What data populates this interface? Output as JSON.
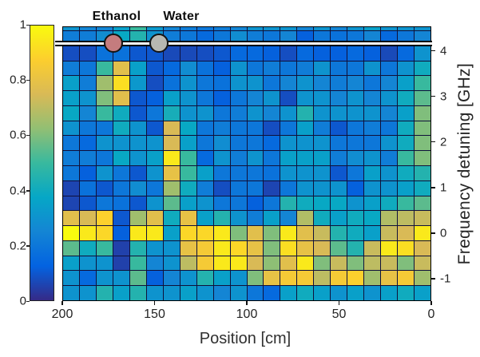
{
  "figure": {
    "annotations": {
      "ethanol_label": "Ethanol",
      "water_label": "Water",
      "ethanol_marker_color": "#c47c7e",
      "water_marker_color": "#b7b7b1",
      "marker_outline_color": "#141414",
      "scan_line_color": "#ffffff",
      "ethanol_position_cm": 172,
      "water_position_cm": 148,
      "scan_line_detuning_ghz": 4.2
    },
    "x_axis": {
      "label": "Position [cm]",
      "ticks": [
        "200",
        "150",
        "100",
        "50",
        "0"
      ]
    },
    "y_axis_right": {
      "label": "Frequency detuning [GHz]",
      "ticks": [
        "4",
        "3",
        "2",
        "1",
        "0",
        "-1"
      ]
    },
    "colorbar": {
      "ticks": [
        "1",
        "0.8",
        "0.6",
        "0.4",
        "0.2",
        "0"
      ],
      "range": [
        0,
        1
      ]
    }
  },
  "chart_data": {
    "type": "heatmap",
    "colormap": "parula",
    "parula_stops": [
      [
        0,
        "#352a87"
      ],
      [
        0.125,
        "#0363e1"
      ],
      [
        0.25,
        "#1485d4"
      ],
      [
        0.375,
        "#06a7c6"
      ],
      [
        0.5,
        "#38b99e"
      ],
      [
        0.625,
        "#92bf73"
      ],
      [
        0.75,
        "#d9ba56"
      ],
      [
        0.875,
        "#fcce2e"
      ],
      [
        1,
        "#f9fb0e"
      ]
    ],
    "grid_line_color": "#10103a",
    "n_rows": 19,
    "n_cols": 22,
    "x_range_cm": [
      200,
      0
    ],
    "y_range_ghz": [
      4.67,
      -1.33
    ],
    "note": "top row is partially clipped by the axes; values on 0-1 colorbar scale",
    "values": [
      [
        0.3,
        0.25,
        0.25,
        0.35,
        0.5,
        0.32,
        0.25,
        0.22,
        0.2,
        0.22,
        0.25,
        0.3,
        0.3,
        0.3,
        0.25,
        0.3,
        0.25,
        0.3,
        0.35,
        0.3,
        0.3,
        0.3
      ],
      [
        0.22,
        0.22,
        0.28,
        0.38,
        0.45,
        0.3,
        0.22,
        0.2,
        0.15,
        0.2,
        0.28,
        0.22,
        0.2,
        0.25,
        0.12,
        0.2,
        0.18,
        0.2,
        0.25,
        0.15,
        0.2,
        0.25
      ],
      [
        0.08,
        0.08,
        0.18,
        0.18,
        0.1,
        0.1,
        0.07,
        0.07,
        0.08,
        0.1,
        0.15,
        0.15,
        0.12,
        0.08,
        0.15,
        0.12,
        0.12,
        0.15,
        0.12,
        0.07,
        0.15,
        0.3
      ],
      [
        0.22,
        0.2,
        0.5,
        0.78,
        0.35,
        0.1,
        0.15,
        0.28,
        0.18,
        0.12,
        0.3,
        0.2,
        0.22,
        0.2,
        0.22,
        0.3,
        0.2,
        0.2,
        0.3,
        0.2,
        0.3,
        0.4
      ],
      [
        0.35,
        0.22,
        0.65,
        0.92,
        0.32,
        0.08,
        0.18,
        0.3,
        0.2,
        0.18,
        0.3,
        0.3,
        0.2,
        0.25,
        0.3,
        0.25,
        0.22,
        0.25,
        0.2,
        0.25,
        0.35,
        0.5
      ],
      [
        0.35,
        0.3,
        0.6,
        0.78,
        0.1,
        0.12,
        0.35,
        0.3,
        0.2,
        0.12,
        0.2,
        0.25,
        0.3,
        0.08,
        0.3,
        0.3,
        0.25,
        0.3,
        0.25,
        0.3,
        0.4,
        0.55
      ],
      [
        0.38,
        0.25,
        0.5,
        0.4,
        0.1,
        0.2,
        0.42,
        0.3,
        0.3,
        0.2,
        0.22,
        0.3,
        0.25,
        0.3,
        0.45,
        0.3,
        0.3,
        0.3,
        0.3,
        0.25,
        0.35,
        0.6
      ],
      [
        0.3,
        0.2,
        0.2,
        0.4,
        0.3,
        0.1,
        0.75,
        0.38,
        0.2,
        0.22,
        0.2,
        0.2,
        0.08,
        0.2,
        0.35,
        0.22,
        0.1,
        0.2,
        0.22,
        0.2,
        0.4,
        0.6
      ],
      [
        0.2,
        0.15,
        0.3,
        0.3,
        0.3,
        0.3,
        0.75,
        0.35,
        0.2,
        0.28,
        0.2,
        0.2,
        0.15,
        0.3,
        0.3,
        0.3,
        0.2,
        0.2,
        0.2,
        0.3,
        0.4,
        0.6
      ],
      [
        0.22,
        0.22,
        0.2,
        0.38,
        0.3,
        0.35,
        0.95,
        0.5,
        0.15,
        0.3,
        0.22,
        0.3,
        0.2,
        0.35,
        0.35,
        0.35,
        0.22,
        0.28,
        0.3,
        0.22,
        0.5,
        0.6
      ],
      [
        0.2,
        0.12,
        0.3,
        0.2,
        0.1,
        0.3,
        0.8,
        0.5,
        0.35,
        0.2,
        0.2,
        0.2,
        0.18,
        0.3,
        0.3,
        0.3,
        0.1,
        0.2,
        0.35,
        0.3,
        0.4,
        0.45
      ],
      [
        0.06,
        0.18,
        0.1,
        0.2,
        0.28,
        0.2,
        0.65,
        0.4,
        0.22,
        0.08,
        0.2,
        0.2,
        0.06,
        0.2,
        0.3,
        0.3,
        0.3,
        0.12,
        0.3,
        0.3,
        0.35,
        0.4
      ],
      [
        0.06,
        0.1,
        0.2,
        0.18,
        0.1,
        0.3,
        0.55,
        0.35,
        0.3,
        0.2,
        0.2,
        0.12,
        0.2,
        0.45,
        0.4,
        0.38,
        0.38,
        0.3,
        0.35,
        0.4,
        0.5,
        0.55
      ],
      [
        0.78,
        0.75,
        0.88,
        0.1,
        0.65,
        0.78,
        0.4,
        0.8,
        0.35,
        0.45,
        0.3,
        0.22,
        0.35,
        0.25,
        0.68,
        0.4,
        0.35,
        0.4,
        0.38,
        0.68,
        0.7,
        0.72
      ],
      [
        1.0,
        0.95,
        0.9,
        0.12,
        0.95,
        0.95,
        0.35,
        0.9,
        0.9,
        0.95,
        0.6,
        0.78,
        0.6,
        0.95,
        0.78,
        0.72,
        0.45,
        0.4,
        0.35,
        0.72,
        0.75,
        0.95
      ],
      [
        0.55,
        0.4,
        0.5,
        0.05,
        0.45,
        0.3,
        0.3,
        0.8,
        0.85,
        0.95,
        0.9,
        0.8,
        0.6,
        0.92,
        0.8,
        0.75,
        0.55,
        0.45,
        0.72,
        0.95,
        0.92,
        0.75
      ],
      [
        0.35,
        0.3,
        0.3,
        0.05,
        0.5,
        0.25,
        0.3,
        0.7,
        0.85,
        0.95,
        0.95,
        0.75,
        0.62,
        0.78,
        0.95,
        0.6,
        0.72,
        0.6,
        0.7,
        0.72,
        0.6,
        0.72
      ],
      [
        0.3,
        0.15,
        0.3,
        0.3,
        0.55,
        0.12,
        0.25,
        0.3,
        0.45,
        0.35,
        0.3,
        0.6,
        0.8,
        0.85,
        0.85,
        0.7,
        0.85,
        0.88,
        0.65,
        0.8,
        0.85,
        0.65
      ],
      [
        0.3,
        0.3,
        0.45,
        0.35,
        0.45,
        0.3,
        0.3,
        0.35,
        0.3,
        0.25,
        0.3,
        0.2,
        0.15,
        0.35,
        0.4,
        0.35,
        0.3,
        0.35,
        0.3,
        0.35,
        0.4,
        0.35
      ]
    ]
  }
}
